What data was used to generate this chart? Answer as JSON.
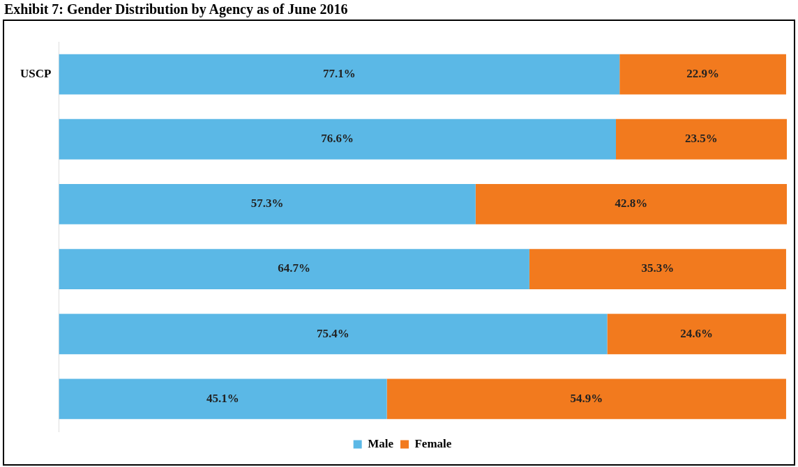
{
  "chart_data": {
    "type": "bar",
    "orientation": "horizontal",
    "stacked": true,
    "title": "Exhibit 7: Gender Distribution by Agency as of June 2016",
    "categories": [
      "USCP",
      null,
      null,
      null,
      null,
      null
    ],
    "series": [
      {
        "name": "Male",
        "color": "#5bb8e6",
        "values": [
          77.1,
          76.6,
          57.3,
          64.7,
          75.4,
          45.1
        ],
        "value_labels": [
          "77.1%",
          "76.6%",
          "57.3%",
          "64.7%",
          "75.4%",
          "45.1%"
        ]
      },
      {
        "name": "Female",
        "color": "#f27a1e",
        "values": [
          22.9,
          23.5,
          42.8,
          35.3,
          24.6,
          54.9
        ],
        "value_labels": [
          "22.9%",
          "23.5%",
          "42.8%",
          "35.3%",
          "24.6%",
          "54.9%"
        ]
      }
    ],
    "xlim": [
      0,
      100.1
    ],
    "legend": "bottom"
  }
}
